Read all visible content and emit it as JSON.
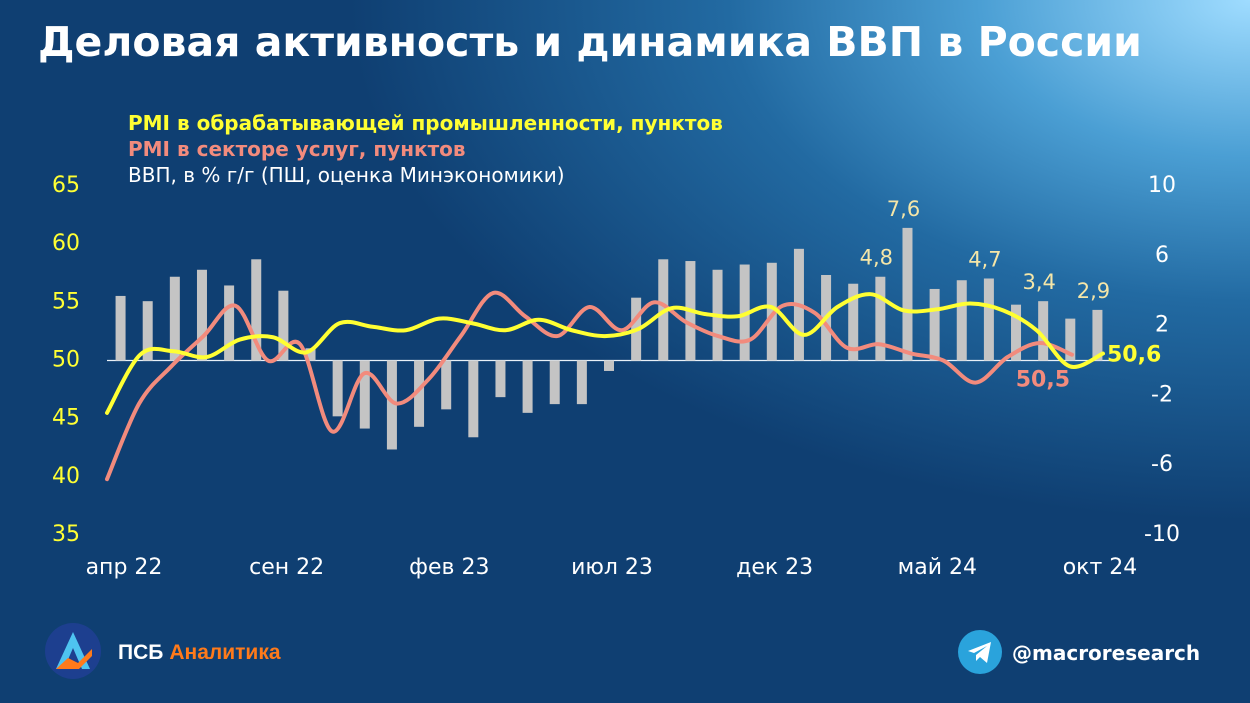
{
  "title": "Деловая активность и динамика ВВП в России",
  "legend": {
    "pmi_manufacturing": "PMI в обрабатывающей промышленности, пунктов",
    "pmi_services": "PMI в секторе услуг, пунктов",
    "gdp": "ВВП, в % г/г (ПШ, оценка Минэкономики)"
  },
  "colors": {
    "pmi_manufacturing": "#ffff33",
    "pmi_services": "#f28b7d",
    "gdp_bars": "#c4c4c4",
    "left_axis_text": "#ffff33",
    "right_axis_text": "#ffffff",
    "point_labels": "#f5e6a8"
  },
  "chart_data": {
    "type": "line",
    "x_labels": [
      "апр 22",
      "сен 22",
      "фев 23",
      "июл 23",
      "дек 23",
      "май 24",
      "окт 24"
    ],
    "left_axis": {
      "ticks": [
        "65",
        "60",
        "55",
        "50",
        "45",
        "40",
        "35"
      ],
      "ylim": [
        35,
        65
      ]
    },
    "right_axis": {
      "ticks": [
        "10",
        "6",
        "2",
        "-2",
        "-6",
        "-10"
      ],
      "ylim": [
        -10,
        10
      ]
    },
    "series": [
      {
        "name": "PMI в обрабатывающей промышленности, пунктов",
        "axis": "left",
        "values": [
          45.5,
          50.5,
          50.8,
          50.3,
          51.8,
          52.0,
          50.7,
          53.2,
          52.9,
          52.6,
          53.6,
          53.2,
          52.6,
          53.5,
          52.6,
          52.1,
          52.7,
          54.5,
          54.0,
          53.8,
          54.6,
          52.2,
          54.6,
          55.7,
          54.3,
          54.4,
          54.9,
          54.3,
          52.6,
          49.5,
          50.6
        ],
        "end_label": "50,6"
      },
      {
        "name": "PMI в секторе услуг, пунктов",
        "axis": "left",
        "values": [
          39.8,
          46.3,
          49.5,
          52.1,
          54.7,
          50.0,
          51.4,
          43.9,
          48.9,
          46.3,
          48.4,
          52.1,
          55.8,
          53.8,
          52.1,
          54.6,
          52.6,
          55.0,
          53.3,
          52.1,
          51.8,
          54.7,
          54.1,
          51.1,
          51.4,
          50.6,
          50.0,
          48.1,
          50.3,
          51.5,
          50.5
        ],
        "end_label": "50,5"
      },
      {
        "name": "ВВП, в % г/г (ПШ, оценка Минэкономики)",
        "axis": "right",
        "type": "bar",
        "values": [
          3.7,
          3.4,
          4.8,
          5.2,
          4.3,
          5.8,
          4.0,
          0.7,
          -3.2,
          -3.9,
          -5.1,
          -3.8,
          -2.8,
          -4.4,
          -2.1,
          -3.0,
          -2.5,
          -2.5,
          -0.6,
          3.6,
          5.8,
          5.7,
          5.2,
          5.5,
          5.6,
          6.4,
          4.9,
          4.4,
          4.8,
          7.6,
          4.1,
          4.6,
          4.7,
          3.2,
          3.4,
          2.4,
          2.9
        ],
        "labels": {
          "28": "4,8",
          "29": "7,6",
          "32": "4,7",
          "34": "3,4",
          "36": "2,9"
        }
      }
    ]
  },
  "footer": {
    "brand_part1": "ПСБ",
    "brand_part2": "Аналитика",
    "telegram_handle": "@macroresearch"
  }
}
